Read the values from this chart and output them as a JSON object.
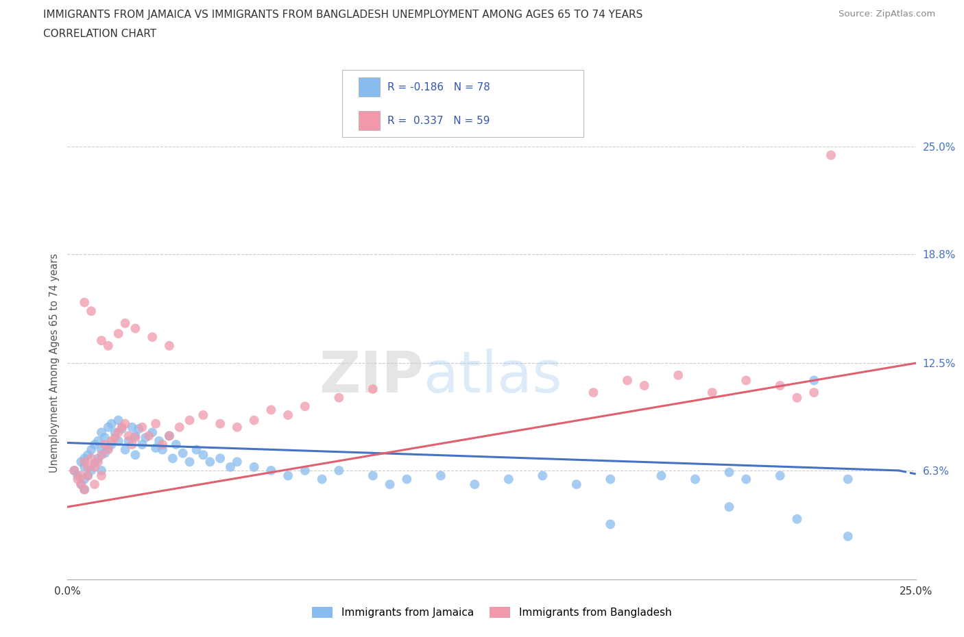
{
  "title_line1": "IMMIGRANTS FROM JAMAICA VS IMMIGRANTS FROM BANGLADESH UNEMPLOYMENT AMONG AGES 65 TO 74 YEARS",
  "title_line2": "CORRELATION CHART",
  "source_text": "Source: ZipAtlas.com",
  "ylabel": "Unemployment Among Ages 65 to 74 years",
  "xlim": [
    0.0,
    0.25
  ],
  "ylim": [
    0.0,
    0.25
  ],
  "xtick_labels": [
    "0.0%",
    "25.0%"
  ],
  "xtick_positions": [
    0.0,
    0.25
  ],
  "ytick_labels": [
    "6.3%",
    "12.5%",
    "18.8%",
    "25.0%"
  ],
  "ytick_positions": [
    0.063,
    0.125,
    0.188,
    0.25
  ],
  "jamaica_color": "#88bbee",
  "bangladesh_color": "#f099aa",
  "jamaica_line_color": "#4472c4",
  "bangladesh_line_color": "#e06070",
  "jamaica_R": -0.186,
  "jamaica_N": 78,
  "bangladesh_R": 0.337,
  "bangladesh_N": 59,
  "legend_label_1": "Immigrants from Jamaica",
  "legend_label_2": "Immigrants from Bangladesh",
  "watermark_part1": "ZIP",
  "watermark_part2": "atlas",
  "jamaica_scatter_x": [
    0.002,
    0.003,
    0.004,
    0.004,
    0.005,
    0.005,
    0.005,
    0.005,
    0.006,
    0.006,
    0.007,
    0.007,
    0.008,
    0.008,
    0.009,
    0.009,
    0.01,
    0.01,
    0.01,
    0.011,
    0.011,
    0.012,
    0.012,
    0.013,
    0.013,
    0.014,
    0.015,
    0.015,
    0.016,
    0.017,
    0.018,
    0.019,
    0.02,
    0.02,
    0.021,
    0.022,
    0.023,
    0.025,
    0.026,
    0.027,
    0.028,
    0.03,
    0.031,
    0.032,
    0.034,
    0.036,
    0.038,
    0.04,
    0.042,
    0.045,
    0.048,
    0.05,
    0.055,
    0.06,
    0.065,
    0.07,
    0.075,
    0.08,
    0.09,
    0.095,
    0.1,
    0.11,
    0.12,
    0.13,
    0.14,
    0.15,
    0.16,
    0.175,
    0.185,
    0.195,
    0.2,
    0.21,
    0.22,
    0.23,
    0.195,
    0.215,
    0.23,
    0.16
  ],
  "jamaica_scatter_y": [
    0.063,
    0.06,
    0.068,
    0.055,
    0.07,
    0.065,
    0.058,
    0.052,
    0.072,
    0.06,
    0.075,
    0.063,
    0.078,
    0.067,
    0.08,
    0.07,
    0.085,
    0.075,
    0.063,
    0.082,
    0.073,
    0.088,
    0.076,
    0.09,
    0.078,
    0.085,
    0.092,
    0.08,
    0.087,
    0.075,
    0.08,
    0.088,
    0.083,
    0.072,
    0.087,
    0.078,
    0.082,
    0.085,
    0.076,
    0.08,
    0.075,
    0.083,
    0.07,
    0.078,
    0.073,
    0.068,
    0.075,
    0.072,
    0.068,
    0.07,
    0.065,
    0.068,
    0.065,
    0.063,
    0.06,
    0.063,
    0.058,
    0.063,
    0.06,
    0.055,
    0.058,
    0.06,
    0.055,
    0.058,
    0.06,
    0.055,
    0.058,
    0.06,
    0.058,
    0.062,
    0.058,
    0.06,
    0.115,
    0.058,
    0.042,
    0.035,
    0.025,
    0.032
  ],
  "bangladesh_scatter_x": [
    0.002,
    0.003,
    0.004,
    0.004,
    0.005,
    0.005,
    0.006,
    0.006,
    0.007,
    0.008,
    0.008,
    0.009,
    0.01,
    0.01,
    0.011,
    0.012,
    0.013,
    0.014,
    0.015,
    0.016,
    0.017,
    0.018,
    0.019,
    0.02,
    0.022,
    0.024,
    0.026,
    0.028,
    0.03,
    0.033,
    0.036,
    0.04,
    0.045,
    0.05,
    0.055,
    0.06,
    0.065,
    0.07,
    0.08,
    0.09,
    0.01,
    0.012,
    0.015,
    0.017,
    0.02,
    0.025,
    0.03,
    0.005,
    0.007,
    0.155,
    0.165,
    0.17,
    0.18,
    0.19,
    0.2,
    0.21,
    0.215,
    0.22,
    0.225
  ],
  "bangladesh_scatter_y": [
    0.063,
    0.058,
    0.055,
    0.06,
    0.068,
    0.052,
    0.065,
    0.06,
    0.07,
    0.065,
    0.055,
    0.068,
    0.072,
    0.06,
    0.078,
    0.075,
    0.08,
    0.082,
    0.085,
    0.088,
    0.09,
    0.083,
    0.078,
    0.082,
    0.088,
    0.083,
    0.09,
    0.078,
    0.083,
    0.088,
    0.092,
    0.095,
    0.09,
    0.088,
    0.092,
    0.098,
    0.095,
    0.1,
    0.105,
    0.11,
    0.138,
    0.135,
    0.142,
    0.148,
    0.145,
    0.14,
    0.135,
    0.16,
    0.155,
    0.108,
    0.115,
    0.112,
    0.118,
    0.108,
    0.115,
    0.112,
    0.105,
    0.108,
    0.245
  ],
  "jamaica_trend_x": [
    0.0,
    0.245
  ],
  "jamaica_trend_y": [
    0.079,
    0.063
  ],
  "bangladesh_trend_x": [
    0.0,
    0.25
  ],
  "bangladesh_trend_y": [
    0.042,
    0.125
  ],
  "grid_color": "#cccccc",
  "title_color": "#444444",
  "source_color": "#888888"
}
